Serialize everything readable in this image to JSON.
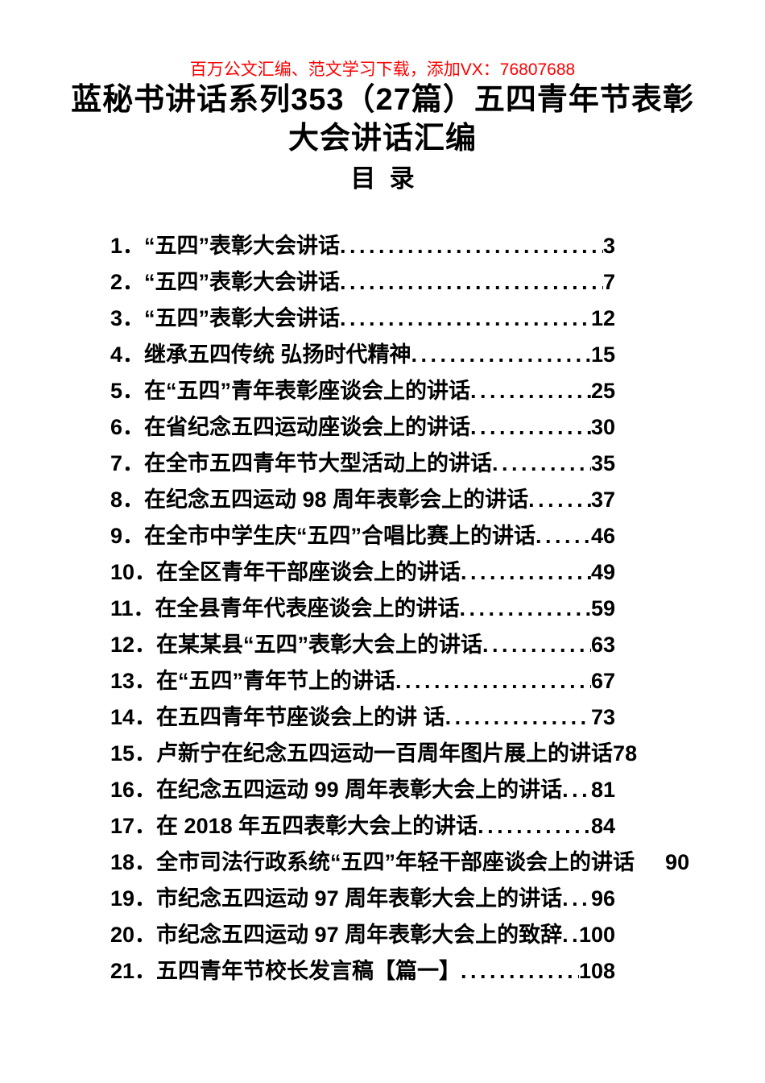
{
  "colors": {
    "promo_red": "#ff0000",
    "text": "#000000",
    "background": "#ffffff"
  },
  "promo": {
    "text": "百万公文汇编、范文学习下载，添加VX：76807688"
  },
  "document": {
    "title": "蓝秘书讲话系列353（27篇）五四青年节表彰大会讲话汇编",
    "toc_heading": "目  录"
  },
  "toc": {
    "entries": [
      {
        "num": "1．",
        "title": "“五四”表彰大会讲话",
        "page": "3",
        "leader": "dots"
      },
      {
        "num": "2．",
        "title": "“五四”表彰大会讲话",
        "page": "7",
        "leader": "dots"
      },
      {
        "num": "3．",
        "title": "“五四”表彰大会讲话",
        "page": "12",
        "leader": "dots"
      },
      {
        "num": "4．",
        "title": "继承五四传统 弘扬时代精神",
        "page": "15",
        "leader": "dots"
      },
      {
        "num": "5．",
        "title": "在“五四”青年表彰座谈会上的讲话",
        "page": "25",
        "leader": "dots"
      },
      {
        "num": "6．",
        "title": "在省纪念五四运动座谈会上的讲话",
        "page": "30",
        "leader": "dots"
      },
      {
        "num": "7．",
        "title": "在全市五四青年节大型活动上的讲话",
        "page": "35",
        "leader": "dots"
      },
      {
        "num": "8．",
        "title": "在纪念五四运动 98 周年表彰会上的讲话",
        "page": "37",
        "leader": "dots"
      },
      {
        "num": "9．",
        "title": "在全市中学生庆“五四”合唱比赛上的讲话",
        "page": "46",
        "leader": "dots"
      },
      {
        "num": "10．",
        "title": "在全区青年干部座谈会上的讲话",
        "page": "49",
        "leader": "dots"
      },
      {
        "num": "11．",
        "title": "在全县青年代表座谈会上的讲话",
        "page": "59",
        "leader": "dots"
      },
      {
        "num": "12．",
        "title": "在某某县“五四”表彰大会上的讲话",
        "page": "63",
        "leader": "dots"
      },
      {
        "num": "13．",
        "title": "在“五四”青年节上的讲话",
        "page": "67",
        "leader": "dots"
      },
      {
        "num": "14．",
        "title": "在五四青年节座谈会上的讲 话",
        "page": "73",
        "leader": "dots"
      },
      {
        "num": "15．",
        "title": "卢新宁在纪念五四运动一百周年图片展上的讲话",
        "page": "78",
        "leader": "none"
      },
      {
        "num": "16．",
        "title": "在纪念五四运动 99 周年表彰大会上的讲话",
        "page": "81",
        "leader": "dots"
      },
      {
        "num": "17．",
        "title": "在 2018 年五四表彰大会上的讲话",
        "page": "84",
        "leader": "dots"
      },
      {
        "num": "18．",
        "title": "全市司法行政系统“五四”年轻干部座谈会上的讲话",
        "page": "90",
        "leader": "space"
      },
      {
        "num": "19．",
        "title": "市纪念五四运动 97 周年表彰大会上的讲话",
        "page": "96",
        "leader": "dots"
      },
      {
        "num": "20．",
        "title": "市纪念五四运动 97 周年表彰大会上的致辞",
        "page": "100",
        "leader": "dots"
      },
      {
        "num": "21．",
        "title": "五四青年节校长发言稿【篇一】",
        "page": "108",
        "leader": "dots"
      }
    ]
  }
}
